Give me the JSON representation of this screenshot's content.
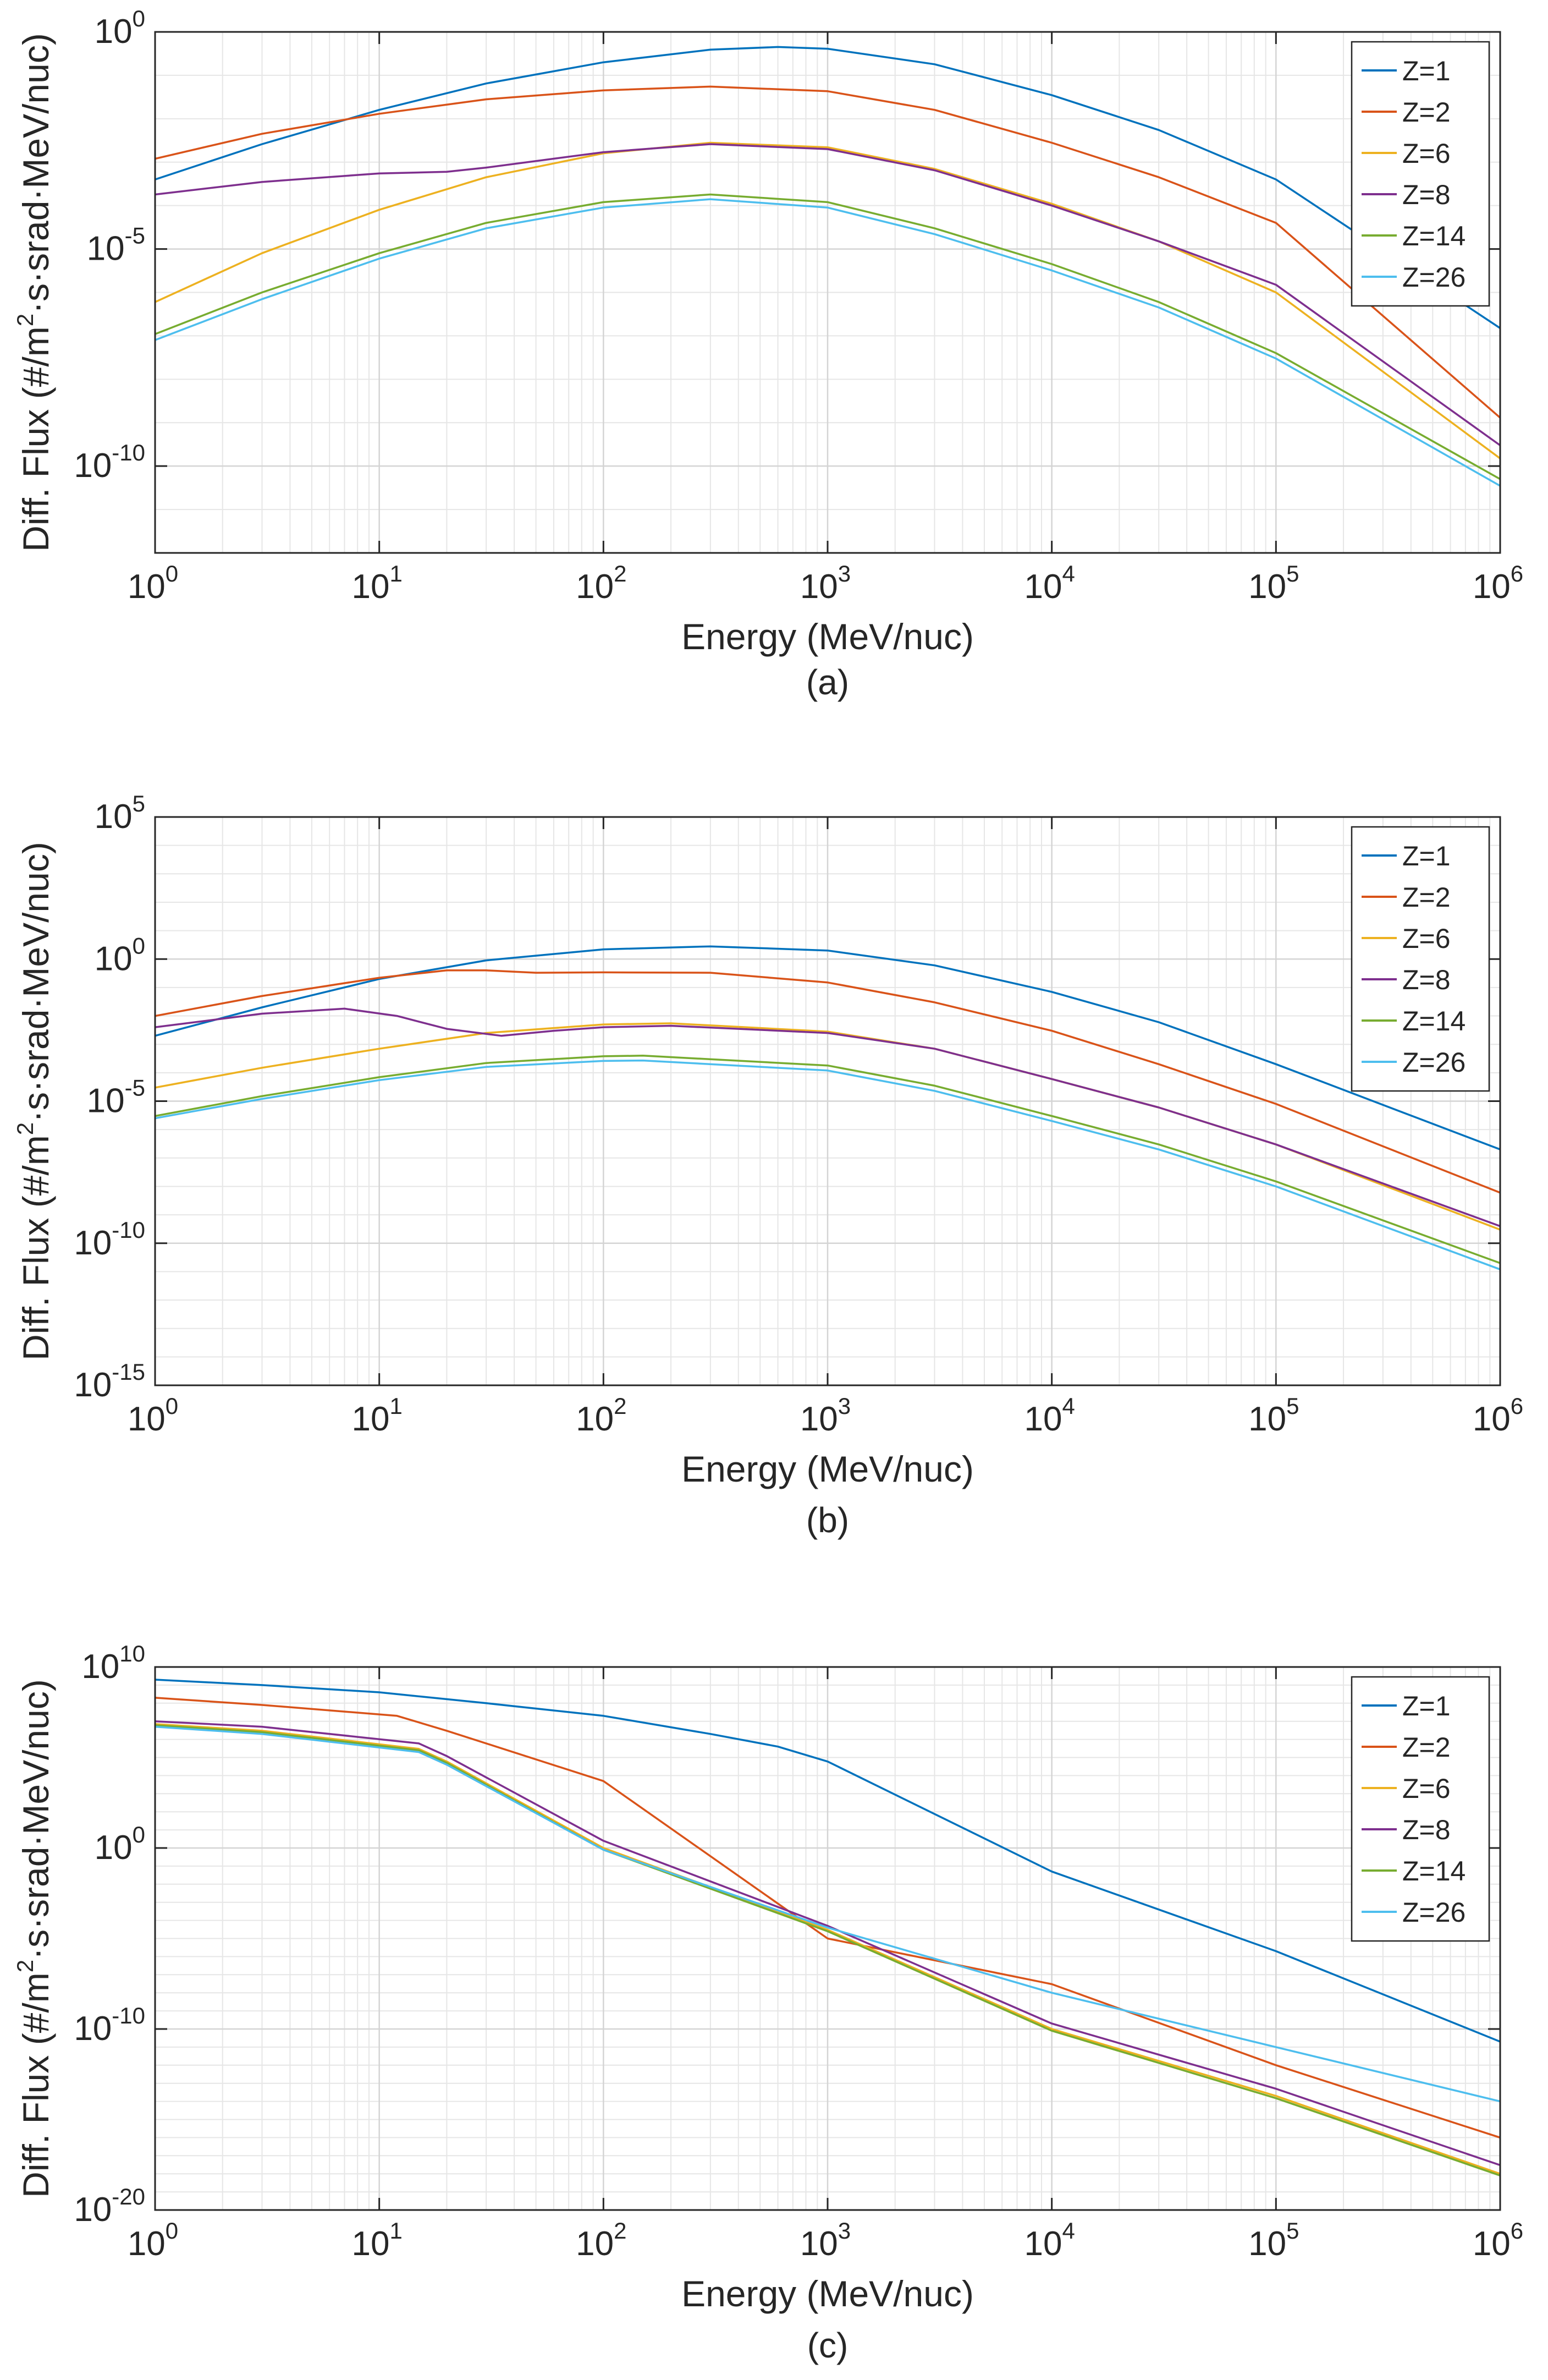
{
  "chart_data": [
    {
      "type": "line",
      "caption": "(a)",
      "xlabel": "Energy (MeV/nuc)",
      "ylabel_parts": [
        "Diff. Flux (#/m",
        "2",
        "·s·srad·MeV/nuc)"
      ],
      "xscale": "log",
      "yscale": "log",
      "xlim": [
        1,
        1000000
      ],
      "ylim": [
        1e-12,
        1
      ],
      "xticks": [
        {
          "base": "10",
          "exp": "0"
        },
        {
          "base": "10",
          "exp": "1"
        },
        {
          "base": "10",
          "exp": "2"
        },
        {
          "base": "10",
          "exp": "3"
        },
        {
          "base": "10",
          "exp": "4"
        },
        {
          "base": "10",
          "exp": "5"
        },
        {
          "base": "10",
          "exp": "6"
        }
      ],
      "yticks": [
        {
          "base": "10",
          "exp": "-10"
        },
        {
          "base": "10",
          "exp": "-5"
        },
        {
          "base": "10",
          "exp": "0"
        }
      ],
      "xtick_log": [
        0,
        1,
        2,
        3,
        4,
        5,
        6
      ],
      "ytick_log": [
        -10,
        -5,
        0
      ],
      "grid": true,
      "legend_position": "top-right",
      "series": [
        {
          "name": "Z=1",
          "color": "#0072BD",
          "x": [
            1,
            3,
            10,
            30,
            100,
            300,
            600,
            1000,
            3000,
            10000,
            30000,
            100000,
            1000000
          ],
          "y": [
            0.0004,
            0.0026,
            0.016,
            0.065,
            0.2,
            0.39,
            0.45,
            0.41,
            0.18,
            0.035,
            0.0055,
            0.0004,
            1.5e-07
          ]
        },
        {
          "name": "Z=2",
          "color": "#D95319",
          "x": [
            1,
            3,
            10,
            30,
            100,
            300,
            1000,
            3000,
            10000,
            30000,
            100000,
            1000000
          ],
          "y": [
            0.0012,
            0.0045,
            0.013,
            0.028,
            0.045,
            0.055,
            0.043,
            0.016,
            0.0028,
            0.00045,
            4e-05,
            1.3e-09
          ]
        },
        {
          "name": "Z=6",
          "color": "#EDB120",
          "x": [
            1,
            3,
            10,
            30,
            100,
            300,
            1000,
            3000,
            10000,
            30000,
            100000,
            1000000
          ],
          "y": [
            6e-07,
            8e-06,
            8e-05,
            0.00045,
            0.0016,
            0.0028,
            0.0022,
            0.0007,
            0.00011,
            1.5e-05,
            1e-06,
            1.5e-10
          ]
        },
        {
          "name": "Z=8",
          "color": "#7E2F8E",
          "x": [
            1,
            3,
            10,
            20,
            30,
            100,
            300,
            1000,
            3000,
            10000,
            30000,
            100000,
            1000000
          ],
          "y": [
            0.00018,
            0.00035,
            0.00055,
            0.0006,
            0.00075,
            0.0017,
            0.0026,
            0.002,
            0.00065,
            0.0001,
            1.5e-05,
            1.5e-06,
            3e-10
          ]
        },
        {
          "name": "Z=14",
          "color": "#77AC30",
          "x": [
            1,
            3,
            10,
            30,
            100,
            300,
            1000,
            3000,
            10000,
            30000,
            100000,
            1000000
          ],
          "y": [
            1.1e-07,
            1e-06,
            8e-06,
            4e-05,
            0.00012,
            0.00018,
            0.00012,
            3e-05,
            4.5e-06,
            6e-07,
            4e-08,
            5e-11
          ]
        },
        {
          "name": "Z=26",
          "color": "#4DBEEE",
          "x": [
            1,
            3,
            10,
            30,
            100,
            300,
            1000,
            3000,
            10000,
            30000,
            100000,
            1000000
          ],
          "y": [
            8e-08,
            7e-07,
            6e-06,
            3e-05,
            9e-05,
            0.00014,
            9e-05,
            2.2e-05,
            3.2e-06,
            4.5e-07,
            3e-08,
            3.5e-11
          ]
        }
      ]
    },
    {
      "type": "line",
      "caption": "(b)",
      "xlabel": "Energy (MeV/nuc)",
      "ylabel_parts": [
        "Diff. Flux (#/m",
        "2",
        "·s·srad·MeV/nuc)"
      ],
      "xscale": "log",
      "yscale": "log",
      "xlim": [
        1,
        1000000
      ],
      "ylim": [
        1e-15,
        100000
      ],
      "xticks": [
        {
          "base": "10",
          "exp": "0"
        },
        {
          "base": "10",
          "exp": "1"
        },
        {
          "base": "10",
          "exp": "2"
        },
        {
          "base": "10",
          "exp": "3"
        },
        {
          "base": "10",
          "exp": "4"
        },
        {
          "base": "10",
          "exp": "5"
        },
        {
          "base": "10",
          "exp": "6"
        }
      ],
      "yticks": [
        {
          "base": "10",
          "exp": "-15"
        },
        {
          "base": "10",
          "exp": "-10"
        },
        {
          "base": "10",
          "exp": "-5"
        },
        {
          "base": "10",
          "exp": "0"
        },
        {
          "base": "10",
          "exp": "5"
        }
      ],
      "xtick_log": [
        0,
        1,
        2,
        3,
        4,
        5,
        6
      ],
      "ytick_log": [
        -15,
        -10,
        -5,
        0,
        5
      ],
      "grid": true,
      "legend_position": "top-right",
      "series": [
        {
          "name": "Z=1",
          "color": "#0072BD",
          "x": [
            1,
            3,
            10,
            30,
            100,
            300,
            1000,
            3000,
            10000,
            30000,
            100000,
            1000000
          ],
          "y": [
            0.002,
            0.02,
            0.2,
            0.9,
            2.2,
            2.8,
            2.0,
            0.6,
            0.07,
            0.006,
            0.0002,
            2e-07
          ]
        },
        {
          "name": "Z=2",
          "color": "#D95319",
          "x": [
            1,
            3,
            10,
            20,
            30,
            50,
            100,
            300,
            1000,
            3000,
            10000,
            30000,
            100000,
            1000000
          ],
          "y": [
            0.01,
            0.05,
            0.22,
            0.4,
            0.4,
            0.33,
            0.34,
            0.33,
            0.15,
            0.03,
            0.003,
            0.0002,
            8e-06,
            6e-09
          ]
        },
        {
          "name": "Z=6",
          "color": "#EDB120",
          "x": [
            1,
            3,
            10,
            30,
            100,
            200,
            1000,
            3000,
            10000,
            30000,
            100000,
            1000000
          ],
          "y": [
            3e-05,
            0.00015,
            0.0007,
            0.0025,
            0.005,
            0.0055,
            0.0028,
            0.0007,
            6e-05,
            6e-06,
            3e-07,
            3e-10
          ]
        },
        {
          "name": "Z=8",
          "color": "#7E2F8E",
          "x": [
            1,
            3,
            7,
            12,
            20,
            35,
            60,
            100,
            200,
            1000,
            3000,
            10000,
            30000,
            100000,
            1000000
          ],
          "y": [
            0.004,
            0.012,
            0.018,
            0.01,
            0.0035,
            0.002,
            0.003,
            0.004,
            0.0045,
            0.0025,
            0.0007,
            6e-05,
            6e-06,
            3e-07,
            4e-10
          ]
        },
        {
          "name": "Z=14",
          "color": "#77AC30",
          "x": [
            1,
            3,
            10,
            30,
            100,
            150,
            1000,
            3000,
            10000,
            30000,
            100000,
            1000000
          ],
          "y": [
            3e-06,
            1.5e-05,
            7e-05,
            0.00022,
            0.00038,
            0.0004,
            0.00018,
            3.5e-05,
            3e-06,
            3e-07,
            1.5e-08,
            2e-11
          ]
        },
        {
          "name": "Z=26",
          "color": "#4DBEEE",
          "x": [
            1,
            3,
            10,
            30,
            100,
            150,
            1000,
            3000,
            10000,
            30000,
            100000,
            1000000
          ],
          "y": [
            2.5e-06,
            1.2e-05,
            5.5e-05,
            0.00016,
            0.00026,
            0.00027,
            0.00012,
            2.3e-05,
            2e-06,
            2e-07,
            1e-08,
            1.2e-11
          ]
        }
      ]
    },
    {
      "type": "line",
      "caption": "(c)",
      "xlabel": "Energy (MeV/nuc)",
      "ylabel_parts": [
        "Diff. Flux (#/m",
        "2",
        "·s·srad·MeV/nuc)"
      ],
      "xscale": "log",
      "yscale": "log",
      "xlim": [
        1,
        1000000
      ],
      "ylim": [
        1e-20,
        10000000000
      ],
      "xticks": [
        {
          "base": "10",
          "exp": "0"
        },
        {
          "base": "10",
          "exp": "1"
        },
        {
          "base": "10",
          "exp": "2"
        },
        {
          "base": "10",
          "exp": "3"
        },
        {
          "base": "10",
          "exp": "4"
        },
        {
          "base": "10",
          "exp": "5"
        },
        {
          "base": "10",
          "exp": "6"
        }
      ],
      "yticks": [
        {
          "base": "10",
          "exp": "-20"
        },
        {
          "base": "10",
          "exp": "-10"
        },
        {
          "base": "10",
          "exp": "0"
        },
        {
          "base": "10",
          "exp": "10"
        }
      ],
      "xtick_log": [
        0,
        1,
        2,
        3,
        4,
        5,
        6
      ],
      "ytick_log": [
        -20,
        -10,
        0,
        10
      ],
      "grid": true,
      "legend_position": "top-right",
      "series": [
        {
          "name": "Z=1",
          "color": "#0072BD",
          "x": [
            1,
            3,
            10,
            30,
            100,
            300,
            600,
            1000,
            10000,
            100000,
            1000000
          ],
          "y": [
            2000000000.0,
            1000000000.0,
            400000000.0,
            100000000.0,
            20000000.0,
            2000000.0,
            400000.0,
            60000.0,
            0.05,
            2e-06,
            2e-11
          ]
        },
        {
          "name": "Z=2",
          "color": "#D95319",
          "x": [
            1,
            3,
            12,
            20,
            100,
            1000,
            10000,
            100000,
            1000000
          ],
          "y": [
            200000000.0,
            80000000.0,
            20000000.0,
            3000000.0,
            5000.0,
            1e-05,
            3e-08,
            1e-12,
            1e-16
          ]
        },
        {
          "name": "Z=6",
          "color": "#EDB120",
          "x": [
            1,
            3,
            15,
            20,
            100,
            1000,
            10000,
            100000,
            1000000
          ],
          "y": [
            7000000.0,
            3000000.0,
            300000.0,
            60000.0,
            1.0,
            3e-05,
            1e-10,
            2e-14,
            1e-18
          ]
        },
        {
          "name": "Z=8",
          "color": "#7E2F8E",
          "x": [
            1,
            3,
            15,
            20,
            100,
            1000,
            10000,
            100000,
            1000000
          ],
          "y": [
            10000000.0,
            5000000.0,
            600000.0,
            120000.0,
            2.5,
            5e-05,
            2e-10,
            5e-14,
            3e-18
          ]
        },
        {
          "name": "Z=14",
          "color": "#77AC30",
          "x": [
            1,
            3,
            15,
            20,
            100,
            1000,
            10000,
            100000,
            1000000
          ],
          "y": [
            6000000.0,
            2500000.0,
            250000.0,
            50000.0,
            0.8,
            2.5e-05,
            8e-11,
            1.5e-14,
            8e-19
          ]
        },
        {
          "name": "Z=26",
          "color": "#4DBEEE",
          "x": [
            1,
            3,
            15,
            20,
            100,
            1000,
            10000,
            100000,
            1000000
          ],
          "y": [
            5000000.0,
            2000000.0,
            200000.0,
            40000.0,
            0.8,
            4e-05,
            1e-08,
            1e-11,
            1e-14
          ]
        }
      ]
    }
  ]
}
